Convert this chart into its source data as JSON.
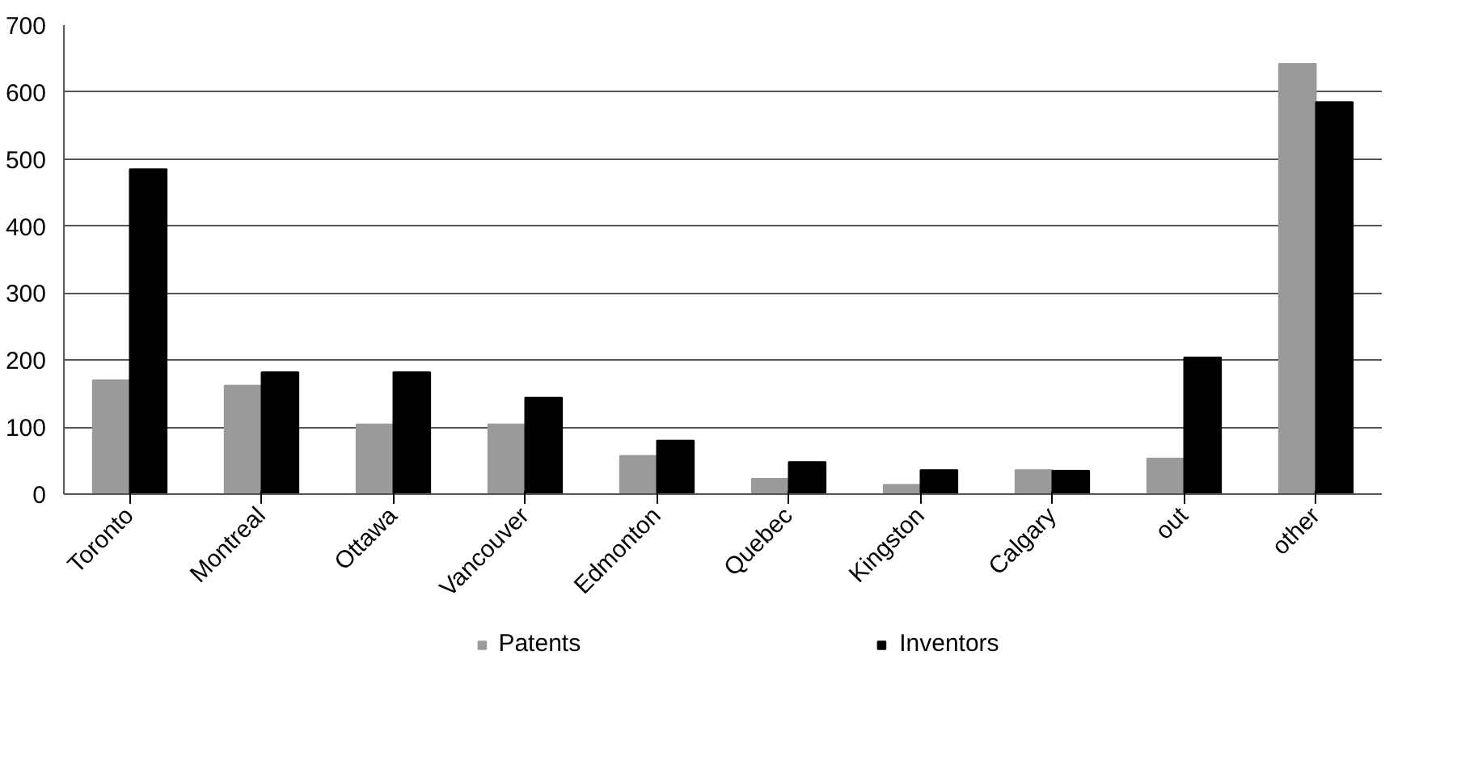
{
  "chart_data": {
    "type": "bar",
    "categories": [
      "Toronto",
      "Montreal",
      "Ottawa",
      "Vancouver",
      "Edmonton",
      "Quebec",
      "Kingston",
      "Calgary",
      "out",
      "other"
    ],
    "series": [
      {
        "name": "Patents",
        "color": "#9a9a9a",
        "values": [
          170,
          162,
          104,
          104,
          57,
          23,
          14,
          36,
          53,
          642
        ]
      },
      {
        "name": "Inventors",
        "color": "#000000",
        "values": [
          485,
          182,
          182,
          144,
          80,
          48,
          36,
          35,
          204,
          585
        ]
      }
    ],
    "ylim": [
      0,
      700
    ],
    "yticks": [
      0,
      100,
      200,
      300,
      400,
      500,
      600,
      700
    ],
    "grid": "y",
    "legend": "bottom"
  }
}
